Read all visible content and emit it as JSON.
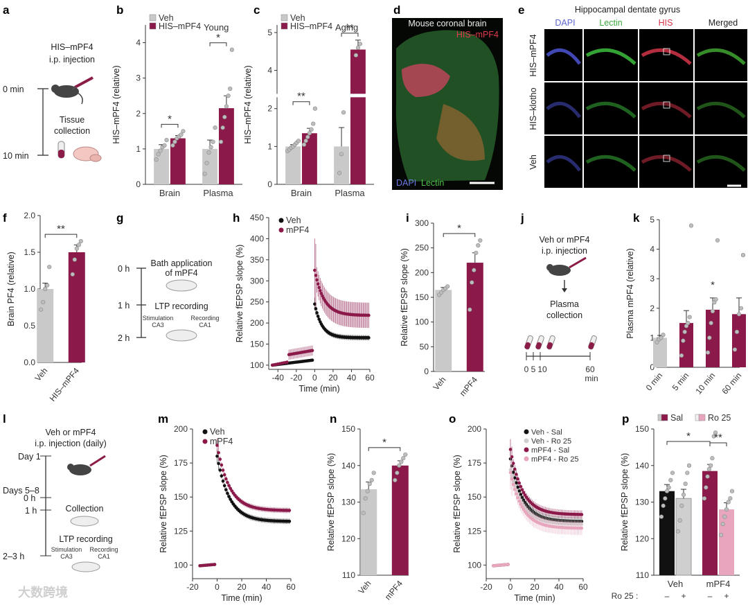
{
  "colors": {
    "veh": "#c9c9c9",
    "mpf4": "#8b1a4a",
    "ro25_veh": "#f1f1f1",
    "ro25_mpf4": "#e8a6be",
    "veh_sal": "#111111",
    "veh_ro": "#cfcfcf",
    "mpf4_sal": "#8b1a4a",
    "mpf4_ro": "#e8a6be"
  },
  "watermark": "大数跨境",
  "panels": {
    "a": {
      "label": "a",
      "step1_line1": "HIS–mPF4",
      "step1_line2": "i.p. injection",
      "t0": "0 min",
      "t10": "10 min",
      "step2_line1": "Tissue",
      "step2_line2": "collection"
    },
    "d": {
      "label": "d",
      "title": "Mouse coronal brain",
      "his": "HIS–mPF4",
      "dapi": "DAPI",
      "lectin": "Lectin"
    },
    "e": {
      "label": "e",
      "title": "Hippocampal dentate gyrus",
      "col_dapi": "DAPI",
      "col_lectin": "Lectin",
      "col_his": "HIS",
      "col_merged": "Merged",
      "row1": "HIS–mPF4",
      "row2": "HIS–klotho",
      "row3": "Veh"
    },
    "g": {
      "label": "g",
      "t0": "0 h",
      "t1": "1 h",
      "t2": "2 h",
      "step1_line1": "Bath application",
      "step1_line2": "of mPF4",
      "step2": "LTP recording",
      "stim": "Stimulation",
      "ca3": "CA3",
      "rec": "Recording",
      "ca1": "CA1"
    },
    "j": {
      "label": "j",
      "step1_line1": "Veh or mPF4",
      "step1_line2": "i.p. injection",
      "step2_line1": "Plasma",
      "step2_line2": "collection",
      "ticks": [
        "0",
        "5",
        "10",
        "60"
      ],
      "unit": "min"
    },
    "l": {
      "label": "l",
      "step1_line1": "Veh or mPF4",
      "step1_line2": "i.p. injection (daily)",
      "day1": "Day 1",
      "days58": "Days 5–8",
      "h0": "0 h",
      "h1": "1 h",
      "h23": "2–3 h",
      "collection": "Collection",
      "ltp": "LTP recording",
      "stim": "Stimulation",
      "ca3": "CA3",
      "rec": "Recording",
      "ca1": "CA1"
    }
  },
  "chart_data": [
    {
      "id": "b",
      "type": "bar",
      "title": "Young",
      "ylabel": "HIS–mPF4 (relative)",
      "ylim": [
        0,
        4.5
      ],
      "yticks": [
        0,
        1,
        2,
        3,
        4
      ],
      "legend": [
        "Veh",
        "HIS–mPF4"
      ],
      "groups": [
        {
          "name": "Brain",
          "bars": [
            {
              "series": "Veh",
              "value": 1.0,
              "err": 0.12,
              "points": [
                0.7,
                0.85,
                0.95,
                1.05,
                1.1,
                1.25
              ]
            },
            {
              "series": "HIS–mPF4",
              "value": 1.3,
              "err": 0.08,
              "points": [
                1.1,
                1.2,
                1.3,
                1.35,
                1.4,
                1.5
              ]
            }
          ],
          "sig": "*"
        },
        {
          "name": "Plasma",
          "bars": [
            {
              "series": "Veh",
              "value": 1.0,
              "err": 0.25,
              "points": [
                0.3,
                0.6,
                0.9,
                1.05,
                1.2,
                1.6
              ]
            },
            {
              "series": "HIS–mPF4",
              "value": 2.15,
              "err": 0.35,
              "points": [
                1.2,
                1.6,
                1.9,
                2.2,
                2.5,
                2.7,
                3.8
              ]
            }
          ],
          "sig": "*"
        }
      ]
    },
    {
      "id": "c",
      "type": "bar",
      "title": "Aging",
      "ylabel": "HIS–mPF4 (relative)",
      "ylim": [
        0,
        5.2
      ],
      "yticks": [
        0,
        1,
        2,
        3,
        4,
        5
      ],
      "break": [
        2.3,
        3.4
      ],
      "legend": [
        "Veh",
        "HIS–mPF4"
      ],
      "groups": [
        {
          "name": "Brain",
          "bars": [
            {
              "series": "Veh",
              "value": 1.0,
              "err": 0.05,
              "points": [
                0.88,
                0.92,
                0.97,
                1.0,
                1.05,
                1.1,
                1.15
              ]
            },
            {
              "series": "HIS–mPF4",
              "value": 1.35,
              "err": 0.13,
              "points": [
                1.05,
                1.15,
                1.25,
                1.35,
                1.45,
                1.6,
                2.0
              ]
            }
          ],
          "sig": "**"
        },
        {
          "name": "Plasma",
          "bars": [
            {
              "series": "Veh",
              "value": 1.0,
              "err": 0.5,
              "points": [
                0.3,
                0.8,
                1.9
              ]
            },
            {
              "series": "HIS–mPF4",
              "value": 4.55,
              "err": 0.25,
              "points": [
                4.4,
                4.6,
                4.7
              ]
            }
          ],
          "sig": "**"
        }
      ]
    },
    {
      "id": "f",
      "type": "bar",
      "ylabel": "Brain PF4 (relative)",
      "ylim": [
        0,
        2.0
      ],
      "yticks": [
        0,
        0.5,
        1.0,
        1.5,
        2.0
      ],
      "groups": [
        {
          "name": "",
          "bars": [
            {
              "series": "Veh",
              "label": "Veh",
              "value": 1.0,
              "err": 0.08,
              "points": [
                0.72,
                0.82,
                1.0,
                1.05,
                1.3
              ]
            },
            {
              "series": "HIS–mPF4",
              "label": "HIS–mPF4",
              "value": 1.5,
              "err": 0.1,
              "points": [
                1.2,
                1.4,
                1.55,
                1.6,
                1.65
              ]
            }
          ],
          "sig": "**"
        }
      ]
    },
    {
      "id": "h",
      "type": "line",
      "xlabel": "Time (min)",
      "ylabel": "Relative fEPSP slope (%)",
      "xlim": [
        -50,
        60
      ],
      "ylim": [
        90,
        450
      ],
      "xticks": [
        -40,
        -20,
        0,
        20,
        40,
        60
      ],
      "yticks": [
        100,
        150,
        200,
        250,
        300,
        350,
        400,
        450
      ],
      "legend": [
        "Veh",
        "mPF4"
      ],
      "series": [
        {
          "name": "Veh",
          "color": "veh_sal",
          "base_start": -46,
          "base_end": -2,
          "base_from": 100,
          "base_to": 112,
          "peak": 245,
          "plateau": 165,
          "tau": 8,
          "err_base": 3,
          "err_post": 6
        },
        {
          "name": "mPF4",
          "color": "mpf4_sal",
          "base_start": -28,
          "base_end": -2,
          "base_from": 125,
          "base_to": 135,
          "pre_start": -46,
          "pre_from": 100,
          "pre_to": 108,
          "peak": 325,
          "plateau": 218,
          "tau": 10,
          "err_base": 12,
          "err_post": 30
        }
      ]
    },
    {
      "id": "i",
      "type": "bar",
      "ylabel": "Relative fEPSP slope (%)",
      "ylim": [
        0,
        300
      ],
      "yticks": [
        0,
        50,
        100,
        150,
        200,
        250,
        300
      ],
      "groups": [
        {
          "name": "",
          "bars": [
            {
              "series": "Veh",
              "label": "Veh",
              "value": 165,
              "err": 5,
              "points": [
                155,
                160,
                165,
                168,
                172
              ]
            },
            {
              "series": "HIS–mPF4",
              "label": "mPF4",
              "value": 220,
              "err": 20,
              "points": [
                125,
                180,
                205,
                240,
                255,
                265
              ]
            }
          ],
          "sig": "*"
        }
      ]
    },
    {
      "id": "k",
      "type": "bar",
      "ylabel": "Plasma mPF4 (relative)",
      "ylim": [
        0,
        5
      ],
      "yticks": [
        0,
        1,
        2,
        3,
        4,
        5
      ],
      "groups": [
        {
          "name": "",
          "bars": [
            {
              "series": "Veh",
              "label": "0 min",
              "value": 1.0,
              "err": 0.08,
              "points": [
                0.85,
                0.95,
                1.0,
                1.1
              ]
            },
            {
              "series": "HIS–mPF4",
              "label": "5 min",
              "value": 1.5,
              "err": 0.42,
              "points": [
                0.4,
                0.9,
                1.2,
                1.4,
                1.5,
                1.7,
                4.8
              ]
            },
            {
              "series": "HIS–mPF4",
              "label": "10 min",
              "value": 1.95,
              "err": 0.4,
              "points": [
                0.5,
                1.0,
                1.5,
                1.9,
                2.2,
                2.3,
                4.3
              ],
              "sig": "*"
            },
            {
              "series": "HIS–mPF4",
              "label": "60 min",
              "value": 1.8,
              "err": 0.55,
              "points": [
                0.6,
                1.2,
                1.8,
                2.0,
                3.8
              ]
            }
          ]
        }
      ]
    },
    {
      "id": "m",
      "type": "line",
      "xlabel": "Time (min)",
      "ylabel": "Relative fEPSP slope (%)",
      "xlim": [
        -20,
        60
      ],
      "ylim": [
        90,
        200
      ],
      "xticks": [
        -20,
        0,
        20,
        40,
        60
      ],
      "yticks": [
        100,
        125,
        150,
        175,
        200
      ],
      "legend": [
        "Veh",
        "mPF4"
      ],
      "series": [
        {
          "name": "Veh",
          "color": "veh_sal",
          "base_start": -14,
          "base_end": -1,
          "base_from": 99.5,
          "base_to": 100.5,
          "peak": 180,
          "plateau": 132,
          "tau": 10,
          "err_base": 1,
          "err_post": 2
        },
        {
          "name": "mPF4",
          "color": "mpf4_sal",
          "base_start": -14,
          "base_end": -1,
          "base_from": 99.5,
          "base_to": 100.5,
          "peak": 188,
          "plateau": 140,
          "tau": 10,
          "err_base": 1,
          "err_post": 2
        }
      ]
    },
    {
      "id": "n",
      "type": "bar",
      "ylabel": "Relative fEPSP slope (%)",
      "ylim": [
        110,
        150
      ],
      "yticks": [
        110,
        120,
        130,
        140,
        150
      ],
      "groups": [
        {
          "name": "",
          "bars": [
            {
              "series": "Veh",
              "label": "Veh",
              "value": 133.5,
              "err": 2,
              "points": [
                127,
                131,
                133,
                135,
                136,
                138
              ]
            },
            {
              "series": "HIS–mPF4",
              "label": "mPF4",
              "value": 140,
              "err": 1.3,
              "points": [
                136,
                138,
                140,
                141,
                142,
                143
              ]
            }
          ],
          "sig": "*"
        }
      ]
    },
    {
      "id": "o",
      "type": "line",
      "xlabel": "Time (min)",
      "ylabel": "Relative fEPSP slope (%)",
      "xlim": [
        -20,
        60
      ],
      "ylim": [
        90,
        200
      ],
      "xticks": [
        -20,
        0,
        20,
        40,
        60
      ],
      "yticks": [
        100,
        125,
        150,
        175,
        200
      ],
      "legend": [
        "Veh - Sal",
        "Veh - Ro 25",
        "mPF4 - Sal",
        "mPF4 - Ro 25"
      ],
      "series": [
        {
          "name": "Veh - Sal",
          "color": "veh_sal",
          "base_start": -14,
          "base_end": -1,
          "base_from": 99.5,
          "base_to": 100.5,
          "peak": 178,
          "plateau": 132,
          "tau": 10,
          "err_base": 1,
          "err_post": 3
        },
        {
          "name": "Veh - Ro 25",
          "color": "veh_ro",
          "base_start": -14,
          "base_end": -1,
          "base_from": 99.5,
          "base_to": 100.5,
          "peak": 170,
          "plateau": 130,
          "tau": 10,
          "err_base": 1,
          "err_post": 4
        },
        {
          "name": "mPF4 - Sal",
          "color": "mpf4_sal",
          "base_start": -14,
          "base_end": -1,
          "base_from": 99.5,
          "base_to": 100.5,
          "peak": 185,
          "plateau": 137,
          "tau": 10,
          "err_base": 1,
          "err_post": 3
        },
        {
          "name": "mPF4 - Ro 25",
          "color": "mpf4_ro",
          "base_start": -14,
          "base_end": -1,
          "base_from": 99.5,
          "base_to": 100.5,
          "peak": 168,
          "plateau": 127,
          "tau": 10,
          "err_base": 1,
          "err_post": 5
        }
      ]
    },
    {
      "id": "p",
      "type": "bar",
      "ylabel": "Relative fEPSP slope (%)",
      "ylim": [
        110,
        150
      ],
      "yticks": [
        110,
        120,
        130,
        140,
        150
      ],
      "legend": [
        "Sal",
        "Ro 25"
      ],
      "row_label": "Ro 25 :",
      "row_marks": [
        "–",
        "+",
        "–",
        "+"
      ],
      "groups": [
        {
          "name": "Veh",
          "bars": [
            {
              "series": "veh_sal",
              "value": 133,
              "err": 1.8,
              "points": [
                126,
                129,
                131,
                133,
                134,
                136,
                138
              ]
            },
            {
              "series": "veh_ro",
              "value": 131,
              "err": 2.5,
              "points": [
                122,
                125,
                129,
                132,
                135,
                138,
                140
              ]
            }
          ]
        },
        {
          "name": "mPF4",
          "bars": [
            {
              "series": "mpf4_sal",
              "value": 138.5,
              "err": 1.8,
              "points": [
                131,
                134,
                137,
                139,
                140,
                142,
                148,
                149
              ]
            },
            {
              "series": "mpf4_ro",
              "value": 128,
              "err": 1.8,
              "points": [
                121,
                124,
                126,
                128,
                130,
                131,
                133
              ]
            }
          ]
        }
      ],
      "sig_pairs": [
        {
          "from": [
            0,
            0
          ],
          "to": [
            1,
            0
          ],
          "text": "*"
        },
        {
          "from": [
            1,
            0
          ],
          "to": [
            1,
            1
          ],
          "text": "**"
        }
      ]
    }
  ]
}
